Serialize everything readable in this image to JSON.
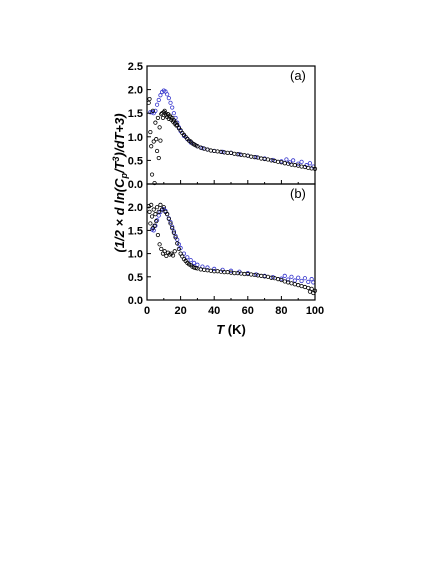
{
  "figure": {
    "ylabel_pre": "(1/2 × d ln(C",
    "ylabel_sub": "p",
    "ylabel_mid": "/T",
    "ylabel_sup": "3",
    "ylabel_post": ")/dT+3)",
    "xlabel_var": "T",
    "xlabel_unit": " (K)"
  },
  "chart_data": [
    {
      "type": "scatter",
      "panel_label": "(a)",
      "xlim": [
        0,
        100
      ],
      "ylim": [
        0,
        2.5
      ],
      "x_ticks": [
        "0",
        "20",
        "40",
        "60",
        "80",
        "100"
      ],
      "y_ticks": [
        "0.0",
        "0.5",
        "1.0",
        "1.5",
        "2.0",
        "2.5"
      ],
      "xlabel": "",
      "ylabel": "",
      "grid": false,
      "colors": {
        "black": "#000000",
        "blue": "#3333cc"
      },
      "series": [
        {
          "color": "#3333cc",
          "marker": "open-circle",
          "points": [
            [
              2,
              1.52
            ],
            [
              3,
              1.52
            ],
            [
              4,
              1.5
            ],
            [
              5,
              1.55
            ],
            [
              6,
              1.68
            ],
            [
              7,
              1.78
            ],
            [
              8,
              1.88
            ],
            [
              9,
              1.95
            ],
            [
              10,
              1.98
            ],
            [
              11,
              1.96
            ],
            [
              12,
              1.9
            ],
            [
              13,
              1.82
            ],
            [
              14,
              1.72
            ],
            [
              15,
              1.62
            ],
            [
              16,
              1.5
            ],
            [
              17,
              1.4
            ],
            [
              18,
              1.3
            ],
            [
              19,
              1.2
            ],
            [
              20,
              1.12
            ],
            [
              22,
              1.02
            ],
            [
              24,
              0.95
            ],
            [
              26,
              0.88
            ],
            [
              28,
              0.84
            ],
            [
              30,
              0.8
            ],
            [
              33,
              0.76
            ],
            [
              36,
              0.73
            ],
            [
              40,
              0.7
            ],
            [
              45,
              0.68
            ],
            [
              50,
              0.66
            ],
            [
              55,
              0.63
            ],
            [
              60,
              0.6
            ],
            [
              65,
              0.57
            ],
            [
              70,
              0.54
            ],
            [
              75,
              0.51
            ],
            [
              80,
              0.48
            ],
            [
              83,
              0.52
            ],
            [
              85,
              0.46
            ],
            [
              87,
              0.5
            ],
            [
              90,
              0.43
            ],
            [
              92,
              0.47
            ],
            [
              95,
              0.4
            ],
            [
              97,
              0.44
            ],
            [
              99,
              0.37
            ]
          ]
        },
        {
          "color": "#000000",
          "marker": "open-circle",
          "points": [
            [
              1,
              1.72
            ],
            [
              1.5,
              1.8
            ],
            [
              2,
              1.1
            ],
            [
              2.5,
              0.8
            ],
            [
              3,
              0.2
            ],
            [
              3.5,
              1.55
            ],
            [
              4,
              0.9
            ],
            [
              4.5,
              0.02
            ],
            [
              5,
              1.3
            ],
            [
              5.5,
              0.95
            ],
            [
              6,
              0.7
            ],
            [
              6.5,
              1.4
            ],
            [
              7,
              0.55
            ],
            [
              7.5,
              1.2
            ],
            [
              8,
              0.92
            ],
            [
              8.5,
              1.48
            ],
            [
              9,
              1.5
            ],
            [
              9.5,
              1.4
            ],
            [
              10,
              1.52
            ],
            [
              10.5,
              1.55
            ],
            [
              11,
              1.5
            ],
            [
              11.5,
              1.46
            ],
            [
              12,
              1.42
            ],
            [
              12.5,
              1.48
            ],
            [
              13,
              1.38
            ],
            [
              13.5,
              1.45
            ],
            [
              14,
              1.42
            ],
            [
              14.5,
              1.36
            ],
            [
              15,
              1.4
            ],
            [
              15.5,
              1.32
            ],
            [
              16,
              1.35
            ],
            [
              16.5,
              1.28
            ],
            [
              17,
              1.3
            ],
            [
              17.5,
              1.24
            ],
            [
              18,
              1.25
            ],
            [
              19,
              1.18
            ],
            [
              20,
              1.14
            ],
            [
              21,
              1.08
            ],
            [
              22,
              1.04
            ],
            [
              23,
              1.0
            ],
            [
              24,
              0.96
            ],
            [
              25,
              0.92
            ],
            [
              26,
              0.9
            ],
            [
              27,
              0.86
            ],
            [
              28,
              0.84
            ],
            [
              29,
              0.82
            ],
            [
              30,
              0.8
            ],
            [
              32,
              0.77
            ],
            [
              34,
              0.75
            ],
            [
              36,
              0.73
            ],
            [
              38,
              0.71
            ],
            [
              40,
              0.7
            ],
            [
              42,
              0.69
            ],
            [
              44,
              0.68
            ],
            [
              46,
              0.67
            ],
            [
              48,
              0.66
            ],
            [
              50,
              0.66
            ],
            [
              52,
              0.64
            ],
            [
              54,
              0.63
            ],
            [
              56,
              0.62
            ],
            [
              58,
              0.61
            ],
            [
              60,
              0.6
            ],
            [
              62,
              0.58
            ],
            [
              64,
              0.57
            ],
            [
              66,
              0.56
            ],
            [
              68,
              0.54
            ],
            [
              70,
              0.53
            ],
            [
              72,
              0.52
            ],
            [
              74,
              0.5
            ],
            [
              76,
              0.49
            ],
            [
              78,
              0.47
            ],
            [
              80,
              0.46
            ],
            [
              82,
              0.44
            ],
            [
              84,
              0.43
            ],
            [
              86,
              0.41
            ],
            [
              88,
              0.4
            ],
            [
              90,
              0.39
            ],
            [
              92,
              0.37
            ],
            [
              94,
              0.36
            ],
            [
              96,
              0.34
            ],
            [
              98,
              0.33
            ],
            [
              100,
              0.32
            ]
          ]
        }
      ]
    },
    {
      "type": "scatter",
      "panel_label": "(b)",
      "xlim": [
        0,
        100
      ],
      "ylim": [
        0,
        2.5
      ],
      "x_ticks": [
        "0",
        "20",
        "40",
        "60",
        "80",
        "100"
      ],
      "y_ticks": [
        "0.0",
        "0.5",
        "1.0",
        "1.5",
        "2.0"
      ],
      "xlabel": "",
      "ylabel": "",
      "grid": false,
      "colors": {
        "black": "#000000",
        "blue": "#3333cc"
      },
      "series": [
        {
          "color": "#3333cc",
          "marker": "open-circle",
          "points": [
            [
              3,
              1.52
            ],
            [
              4,
              1.5
            ],
            [
              5,
              1.6
            ],
            [
              6,
              1.72
            ],
            [
              7,
              1.82
            ],
            [
              8,
              1.9
            ],
            [
              9,
              1.95
            ],
            [
              10,
              1.96
            ],
            [
              11,
              1.92
            ],
            [
              12,
              1.85
            ],
            [
              13,
              1.76
            ],
            [
              14,
              1.68
            ],
            [
              15,
              1.58
            ],
            [
              16,
              1.48
            ],
            [
              17,
              1.38
            ],
            [
              18,
              1.3
            ],
            [
              19,
              1.2
            ],
            [
              20,
              1.12
            ],
            [
              22,
              1.0
            ],
            [
              24,
              0.92
            ],
            [
              26,
              0.86
            ],
            [
              28,
              0.8
            ],
            [
              30,
              0.76
            ],
            [
              33,
              0.72
            ],
            [
              36,
              0.7
            ],
            [
              40,
              0.67
            ],
            [
              45,
              0.65
            ],
            [
              50,
              0.63
            ],
            [
              55,
              0.61
            ],
            [
              60,
              0.58
            ],
            [
              65,
              0.55
            ],
            [
              70,
              0.52
            ],
            [
              75,
              0.49
            ],
            [
              80,
              0.46
            ],
            [
              82,
              0.52
            ],
            [
              84,
              0.44
            ],
            [
              86,
              0.5
            ],
            [
              88,
              0.42
            ],
            [
              90,
              0.48
            ],
            [
              92,
              0.41
            ],
            [
              94,
              0.47
            ],
            [
              96,
              0.39
            ],
            [
              98,
              0.45
            ],
            [
              99,
              0.38
            ]
          ]
        },
        {
          "color": "#000000",
          "marker": "open-circle",
          "points": [
            [
              1,
              2.02
            ],
            [
              1.5,
              1.9
            ],
            [
              2,
              1.65
            ],
            [
              2.5,
              2.05
            ],
            [
              3,
              1.8
            ],
            [
              3.5,
              1.55
            ],
            [
              4,
              1.95
            ],
            [
              4.5,
              1.6
            ],
            [
              5,
              1.85
            ],
            [
              5.5,
              1.7
            ],
            [
              6,
              2.0
            ],
            [
              6.5,
              1.4
            ],
            [
              7,
              1.9
            ],
            [
              7.5,
              1.2
            ],
            [
              8,
              2.05
            ],
            [
              8.5,
              1.1
            ],
            [
              9,
              1.95
            ],
            [
              9.5,
              1.0
            ],
            [
              10,
              2.0
            ],
            [
              10.5,
              1.05
            ],
            [
              11,
              1.9
            ],
            [
              11.5,
              0.95
            ],
            [
              12,
              1.85
            ],
            [
              12.5,
              1.02
            ],
            [
              13,
              1.75
            ],
            [
              13.5,
              0.98
            ],
            [
              14,
              1.65
            ],
            [
              14.5,
              1.0
            ],
            [
              15,
              1.55
            ],
            [
              15.5,
              0.96
            ],
            [
              16,
              1.45
            ],
            [
              16.5,
              1.05
            ],
            [
              17,
              1.35
            ],
            [
              18,
              1.22
            ],
            [
              19,
              1.1
            ],
            [
              20,
              1.0
            ],
            [
              21,
              0.94
            ],
            [
              22,
              0.88
            ],
            [
              23,
              0.84
            ],
            [
              24,
              0.8
            ],
            [
              25,
              0.77
            ],
            [
              26,
              0.75
            ],
            [
              27,
              0.72
            ],
            [
              28,
              0.7
            ],
            [
              29,
              0.69
            ],
            [
              30,
              0.68
            ],
            [
              32,
              0.66
            ],
            [
              34,
              0.65
            ],
            [
              36,
              0.64
            ],
            [
              38,
              0.63
            ],
            [
              40,
              0.62
            ],
            [
              42,
              0.62
            ],
            [
              44,
              0.61
            ],
            [
              46,
              0.6
            ],
            [
              48,
              0.6
            ],
            [
              50,
              0.59
            ],
            [
              52,
              0.58
            ],
            [
              54,
              0.58
            ],
            [
              56,
              0.57
            ],
            [
              58,
              0.56
            ],
            [
              60,
              0.56
            ],
            [
              62,
              0.55
            ],
            [
              64,
              0.54
            ],
            [
              66,
              0.53
            ],
            [
              68,
              0.52
            ],
            [
              70,
              0.51
            ],
            [
              72,
              0.5
            ],
            [
              74,
              0.48
            ],
            [
              76,
              0.47
            ],
            [
              78,
              0.45
            ],
            [
              80,
              0.43
            ],
            [
              82,
              0.4
            ],
            [
              84,
              0.38
            ],
            [
              86,
              0.36
            ],
            [
              88,
              0.34
            ],
            [
              90,
              0.32
            ],
            [
              92,
              0.3
            ],
            [
              94,
              0.28
            ],
            [
              96,
              0.26
            ],
            [
              97,
              0.18
            ],
            [
              98,
              0.24
            ],
            [
              99,
              0.15
            ],
            [
              100,
              0.2
            ]
          ]
        }
      ]
    }
  ]
}
